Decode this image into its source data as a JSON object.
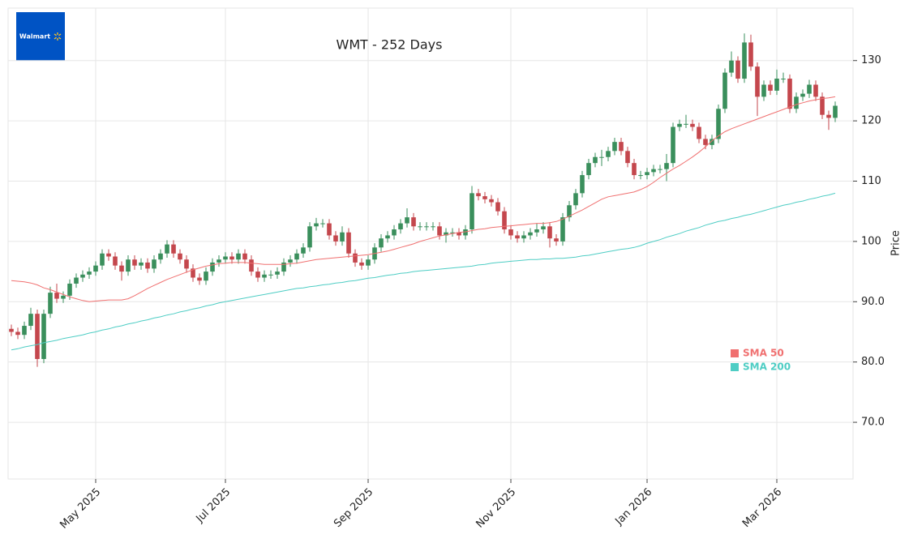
{
  "logo": "Walmart",
  "chart_data": {
    "type": "candlestick",
    "title": "WMT - 252 Days",
    "y_label": "Price",
    "up_color": "#3a8f5c",
    "down_color": "#c4474d",
    "grid": true,
    "legend": "lower right",
    "categories": [
      null,
      null,
      null,
      null,
      null,
      null,
      null,
      null,
      null,
      null,
      null,
      null,
      null,
      null,
      null,
      null,
      null,
      null,
      null,
      null,
      null,
      null,
      null,
      null,
      null,
      null,
      null,
      null,
      null,
      null,
      null,
      null,
      null,
      null,
      null,
      null,
      null,
      null,
      null,
      null,
      null,
      null,
      null,
      null,
      null,
      null,
      null,
      null,
      null,
      null,
      null,
      null,
      null,
      null,
      null,
      null,
      null,
      null,
      null,
      null,
      null,
      null,
      null,
      null,
      null,
      null,
      null,
      null,
      null,
      null,
      null,
      null,
      null,
      null,
      null,
      null,
      null,
      null,
      null,
      null,
      null,
      null,
      null,
      null,
      null,
      null,
      null,
      null,
      null,
      null,
      null,
      null,
      null,
      null,
      null,
      null,
      null,
      null,
      null,
      null,
      null,
      null,
      null,
      null,
      null,
      null,
      null,
      null,
      null,
      null,
      null,
      null,
      null,
      null,
      null,
      null,
      null,
      null,
      null,
      null,
      null,
      null,
      null,
      null,
      null,
      null,
      null,
      null
    ],
    "open": [
      85.5,
      85,
      84.5,
      86,
      88,
      80.5,
      88,
      91.5,
      90.5,
      91,
      93,
      94,
      94.5,
      95,
      96,
      98,
      97.5,
      96,
      95,
      97,
      96,
      96.5,
      95.5,
      97,
      98,
      99.5,
      98,
      97,
      95.5,
      94,
      93.5,
      95,
      96.5,
      97,
      97.5,
      97,
      98,
      97,
      95,
      94,
      94.5,
      94.5,
      95,
      96.5,
      97,
      98,
      99,
      102.5,
      103,
      103,
      101,
      100,
      101.5,
      98,
      96.5,
      96,
      97,
      99,
      100.5,
      101,
      102,
      103,
      104,
      102.5,
      102.5,
      102.5,
      102.5,
      101,
      101.5,
      101.5,
      101,
      102,
      108,
      107.5,
      107,
      106.5,
      105,
      102,
      101,
      100.5,
      101,
      101.5,
      102,
      102.5,
      100.5,
      100,
      104,
      106,
      108,
      111,
      113,
      114,
      114,
      115,
      116.5,
      115,
      113,
      111,
      111,
      111.5,
      112,
      112,
      113,
      119,
      119.5,
      119.5,
      119,
      117,
      116,
      117,
      122,
      128,
      130,
      127,
      133,
      129,
      124,
      126,
      125,
      127,
      127,
      122,
      124,
      124.5,
      126,
      124,
      121,
      120.5
    ],
    "high": [
      86.2,
      85.7,
      86.7,
      89.0,
      88.7,
      88.7,
      92.5,
      93.0,
      91.7,
      93.7,
      94.7,
      95.2,
      95.7,
      96.7,
      98.7,
      98.7,
      98.2,
      96.7,
      97.7,
      97.7,
      97.2,
      97.2,
      97.7,
      98.7,
      100.2,
      100.2,
      98.7,
      97.7,
      96.2,
      94.7,
      95.7,
      97.2,
      97.7,
      98.2,
      98.2,
      98.7,
      98.7,
      97.7,
      95.7,
      95.2,
      95.2,
      95.7,
      97.2,
      97.7,
      98.7,
      99.7,
      103.2,
      103.9,
      103.7,
      103.7,
      101.7,
      102.5,
      102.2,
      98.7,
      97.2,
      97.7,
      99.7,
      101.2,
      101.7,
      102.7,
      103.7,
      105.5,
      104.7,
      103.2,
      103.2,
      103.2,
      103.2,
      102.2,
      102.2,
      102.2,
      102.7,
      109.2,
      108.7,
      108.2,
      107.7,
      107.2,
      105.7,
      102.7,
      101.7,
      101.7,
      102.2,
      103.0,
      103.2,
      103.2,
      101.2,
      104.7,
      106.7,
      108.7,
      111.7,
      113.7,
      114.7,
      115.2,
      115.7,
      117.2,
      117.2,
      115.7,
      113.7,
      111.7,
      112.2,
      112.7,
      112.7,
      114.5,
      119.7,
      120.2,
      121.0,
      120.2,
      119.7,
      117.7,
      117.7,
      122.7,
      128.7,
      131.5,
      130.7,
      134.5,
      134.3,
      129.7,
      126.7,
      126.7,
      128.5,
      128.0,
      127.7,
      124.7,
      125.2,
      126.8,
      126.7,
      124.7,
      121.7,
      123.2
    ],
    "low": [
      84.3,
      83.8,
      83.8,
      85.3,
      79.2,
      79.8,
      87.3,
      89.8,
      89.8,
      90.3,
      92.3,
      93.3,
      93.8,
      94.3,
      95.3,
      96.8,
      95.3,
      93.5,
      94.3,
      95.3,
      95.3,
      94.8,
      94.8,
      96.3,
      97.3,
      97.3,
      96.3,
      94.8,
      93.3,
      92.8,
      92.8,
      94.3,
      95.8,
      96.3,
      96.3,
      96.3,
      96.3,
      94.3,
      93.3,
      93.3,
      93.8,
      93.8,
      94.3,
      95.8,
      96.3,
      97.3,
      98.3,
      101.8,
      102.3,
      100.3,
      99.3,
      99.3,
      97.3,
      95.8,
      95.3,
      95.3,
      96.3,
      98.3,
      99.8,
      100.3,
      101.3,
      102.3,
      101.8,
      101.8,
      101.8,
      101.8,
      100.3,
      99.8,
      100.8,
      100.3,
      100.3,
      101.3,
      106.8,
      106.3,
      105.8,
      104.3,
      101.3,
      100.3,
      99.8,
      99.8,
      100.3,
      100.8,
      101.3,
      99.0,
      99.3,
      99.3,
      103.3,
      105.3,
      107.3,
      110.3,
      112.3,
      112.5,
      113.3,
      114.3,
      114.3,
      112.3,
      110.3,
      110.3,
      110.3,
      110.8,
      111.3,
      110.0,
      112.3,
      118.3,
      118.8,
      118.3,
      116.3,
      115.3,
      115.3,
      116.3,
      121.3,
      127.3,
      126.3,
      126.3,
      128.3,
      120.8,
      123.3,
      124.3,
      124.3,
      126.3,
      121.3,
      121.3,
      123.3,
      123.8,
      123.3,
      120.3,
      118.5,
      119.8
    ],
    "close": [
      85,
      84.5,
      86,
      88,
      80.5,
      88,
      91.5,
      90.5,
      91,
      93,
      94,
      94.5,
      95,
      96,
      98,
      97.5,
      96,
      95,
      97,
      96,
      96.5,
      95.5,
      97,
      98,
      99.5,
      98,
      97,
      95.5,
      94,
      93.5,
      95,
      96.5,
      97,
      97.5,
      97,
      98,
      97,
      95,
      94,
      94.5,
      94.5,
      95,
      96.5,
      97,
      98,
      99,
      102.5,
      103,
      103,
      101,
      100,
      101.5,
      98,
      96.5,
      96,
      97,
      99,
      100.5,
      101,
      102,
      103,
      104,
      102.5,
      102.5,
      102.5,
      102.5,
      101,
      101.5,
      101.5,
      101,
      102,
      108,
      107.5,
      107,
      106.5,
      105,
      102,
      101,
      100.5,
      101,
      101.5,
      102,
      102.5,
      100.5,
      100,
      104,
      106,
      108,
      111,
      113,
      114,
      114,
      115,
      116.5,
      115,
      113,
      111,
      111,
      111.5,
      112,
      112,
      113,
      119,
      119.5,
      119.5,
      119,
      117,
      116,
      117,
      122,
      128,
      130,
      127,
      133,
      129,
      124,
      126,
      125,
      127,
      127,
      122,
      124,
      124.5,
      126,
      124,
      121,
      120.5,
      122.5
    ],
    "series": [
      {
        "name": "SMA 50",
        "color": "#f07070",
        "values": [
          93.5,
          93.4,
          93.3,
          93.1,
          92.8,
          92.3,
          92.0,
          91.6,
          91.2,
          90.8,
          90.5,
          90.2,
          90.0,
          90.1,
          90.2,
          90.3,
          90.3,
          90.3,
          90.5,
          91.0,
          91.6,
          92.2,
          92.7,
          93.2,
          93.7,
          94.1,
          94.5,
          94.9,
          95.3,
          95.6,
          95.9,
          96.1,
          96.3,
          96.4,
          96.5,
          96.5,
          96.5,
          96.4,
          96.3,
          96.2,
          96.2,
          96.2,
          96.2,
          96.3,
          96.4,
          96.6,
          96.8,
          97.0,
          97.1,
          97.2,
          97.3,
          97.4,
          97.5,
          97.6,
          97.7,
          97.8,
          98.0,
          98.2,
          98.4,
          98.7,
          99.0,
          99.3,
          99.6,
          100.0,
          100.3,
          100.6,
          100.9,
          101.1,
          101.3,
          101.5,
          101.6,
          101.8,
          102.0,
          102.1,
          102.3,
          102.4,
          102.5,
          102.6,
          102.7,
          102.8,
          102.9,
          103.0,
          103.0,
          103.1,
          103.3,
          103.7,
          104.2,
          104.7,
          105.2,
          105.8,
          106.4,
          107.0,
          107.4,
          107.6,
          107.8,
          108.0,
          108.2,
          108.6,
          109.1,
          109.8,
          110.6,
          111.3,
          112.0,
          112.6,
          113.3,
          114.0,
          114.8,
          115.7,
          116.7,
          117.5,
          118.2,
          118.7,
          119.1,
          119.5,
          119.9,
          120.3,
          120.7,
          121.1,
          121.5,
          121.9,
          122.3,
          122.7,
          123.0,
          123.3,
          123.5,
          123.7,
          123.8,
          124.0
        ]
      },
      {
        "name": "SMA 200",
        "color": "#4ecdc4",
        "values": [
          82.0,
          82.2,
          82.5,
          82.7,
          82.9,
          83.2,
          83.4,
          83.6,
          83.9,
          84.1,
          84.3,
          84.5,
          84.8,
          85.0,
          85.3,
          85.5,
          85.8,
          86.0,
          86.3,
          86.5,
          86.8,
          87.0,
          87.3,
          87.5,
          87.8,
          88.0,
          88.3,
          88.5,
          88.8,
          89.0,
          89.3,
          89.5,
          89.8,
          90.0,
          90.2,
          90.4,
          90.6,
          90.8,
          91.0,
          91.2,
          91.4,
          91.6,
          91.8,
          92.0,
          92.2,
          92.3,
          92.5,
          92.6,
          92.8,
          92.9,
          93.1,
          93.2,
          93.4,
          93.5,
          93.7,
          93.9,
          94.0,
          94.2,
          94.4,
          94.5,
          94.7,
          94.8,
          95.0,
          95.1,
          95.2,
          95.3,
          95.4,
          95.5,
          95.6,
          95.7,
          95.8,
          95.9,
          96.1,
          96.2,
          96.4,
          96.5,
          96.6,
          96.7,
          96.8,
          96.9,
          97.0,
          97.0,
          97.1,
          97.1,
          97.2,
          97.2,
          97.3,
          97.4,
          97.6,
          97.7,
          97.9,
          98.1,
          98.3,
          98.5,
          98.7,
          98.8,
          99.0,
          99.3,
          99.7,
          100.0,
          100.3,
          100.7,
          101.0,
          101.3,
          101.7,
          102.0,
          102.3,
          102.7,
          103.0,
          103.3,
          103.5,
          103.8,
          104.0,
          104.3,
          104.5,
          104.8,
          105.1,
          105.4,
          105.7,
          106.0,
          106.2,
          106.5,
          106.7,
          107.0,
          107.2,
          107.5,
          107.7,
          108.0
        ]
      }
    ],
    "ylim": [
      60.6,
      138.7
    ],
    "yticks": [
      {
        "value": 70,
        "label": "70.0"
      },
      {
        "value": 80,
        "label": "80.0"
      },
      {
        "value": 90,
        "label": "90.0"
      },
      {
        "value": 100,
        "label": "100"
      },
      {
        "value": 110,
        "label": "110"
      },
      {
        "value": 120,
        "label": "120"
      },
      {
        "value": 130,
        "label": "130"
      }
    ],
    "xticks": [
      {
        "value": 13,
        "label": "May 2025"
      },
      {
        "value": 33,
        "label": "Jul 2025"
      },
      {
        "value": 55,
        "label": "Sep 2025"
      },
      {
        "value": 77,
        "label": "Nov 2025"
      },
      {
        "value": 98,
        "label": "Jan 2026"
      },
      {
        "value": 118,
        "label": "Mar 2026"
      }
    ]
  }
}
